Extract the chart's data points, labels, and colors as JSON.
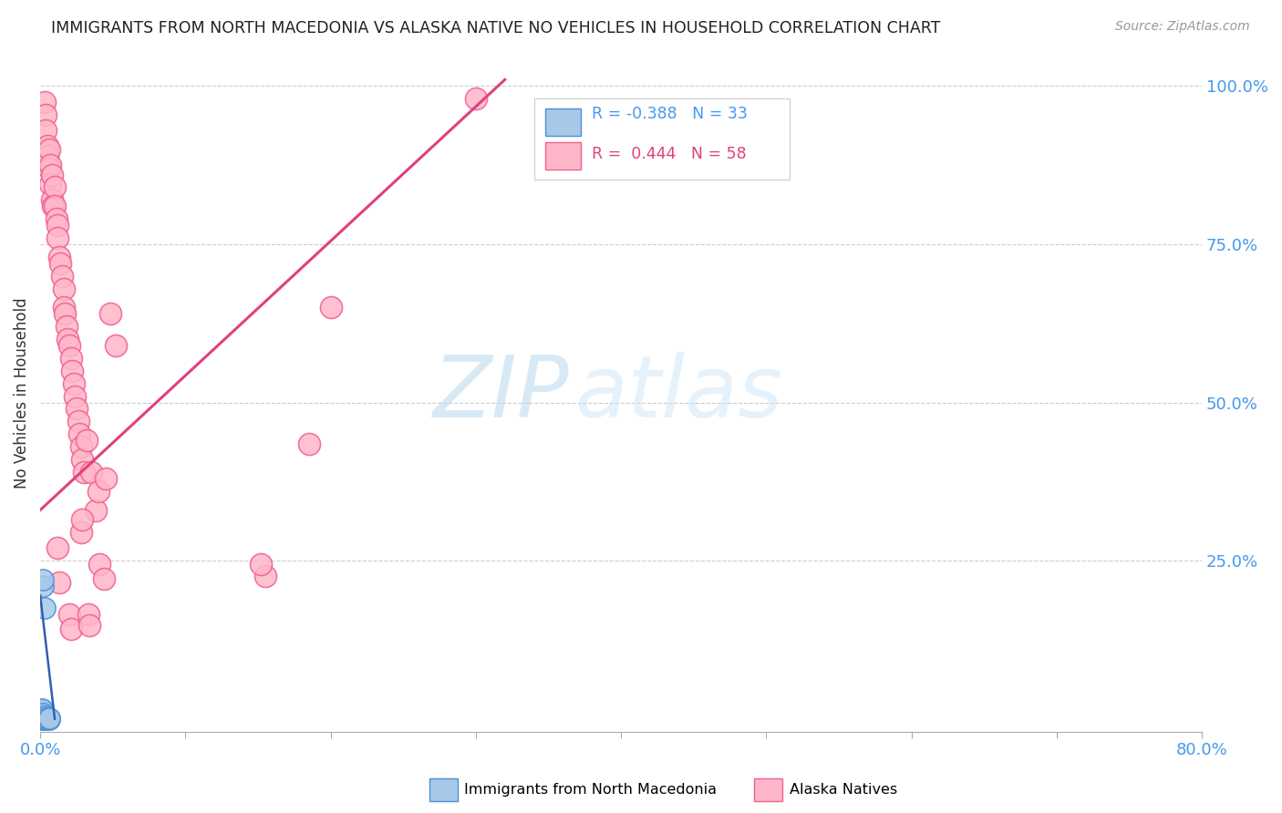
{
  "title": "IMMIGRANTS FROM NORTH MACEDONIA VS ALASKA NATIVE NO VEHICLES IN HOUSEHOLD CORRELATION CHART",
  "source": "Source: ZipAtlas.com",
  "ylabel_label": "No Vehicles in Household",
  "legend_blue_r": "-0.388",
  "legend_blue_n": "33",
  "legend_pink_r": "0.444",
  "legend_pink_n": "58",
  "watermark_zip": "ZIP",
  "watermark_atlas": "atlas",
  "blue_color": "#a8c8e8",
  "pink_color": "#ffb6c8",
  "blue_edge_color": "#4a90d9",
  "pink_edge_color": "#f06090",
  "blue_line_color": "#3060b0",
  "pink_line_color": "#e04080",
  "title_color": "#222222",
  "source_color": "#999999",
  "axis_label_color": "#4499ee",
  "ylabel_color": "#333333",
  "grid_color": "#cccccc",
  "background_color": "#ffffff",
  "xmin": 0.0,
  "xmax": 0.8,
  "ymin": -0.02,
  "ymax": 1.05,
  "x_ticks": [
    0.0,
    0.1,
    0.2,
    0.3,
    0.4,
    0.5,
    0.6,
    0.7,
    0.8
  ],
  "x_tick_labels": [
    "0.0%",
    "",
    "",
    "",
    "",
    "",
    "",
    "",
    "80.0%"
  ],
  "y_ticks": [
    0.0,
    0.25,
    0.5,
    0.75,
    1.0
  ],
  "y_tick_labels": [
    "",
    "25.0%",
    "50.0%",
    "75.0%",
    "100.0%"
  ],
  "blue_scatter": [
    [
      0.001,
      0.0
    ],
    [
      0.001,
      0.001
    ],
    [
      0.001,
      0.002
    ],
    [
      0.001,
      0.003
    ],
    [
      0.001,
      0.004
    ],
    [
      0.001,
      0.005
    ],
    [
      0.001,
      0.006
    ],
    [
      0.001,
      0.007
    ],
    [
      0.001,
      0.008
    ],
    [
      0.001,
      0.009
    ],
    [
      0.001,
      0.01
    ],
    [
      0.001,
      0.011
    ],
    [
      0.001,
      0.012
    ],
    [
      0.001,
      0.013
    ],
    [
      0.001,
      0.014
    ],
    [
      0.001,
      0.015
    ],
    [
      0.002,
      0.0
    ],
    [
      0.002,
      0.002
    ],
    [
      0.002,
      0.004
    ],
    [
      0.002,
      0.006
    ],
    [
      0.002,
      0.008
    ],
    [
      0.003,
      0.0
    ],
    [
      0.003,
      0.001
    ],
    [
      0.003,
      0.002
    ],
    [
      0.003,
      0.004
    ],
    [
      0.004,
      0.0
    ],
    [
      0.004,
      0.001
    ],
    [
      0.005,
      0.0
    ],
    [
      0.006,
      0.0
    ],
    [
      0.006,
      0.001
    ],
    [
      0.002,
      0.21
    ],
    [
      0.002,
      0.22
    ],
    [
      0.003,
      0.175
    ]
  ],
  "pink_scatter": [
    [
      0.003,
      0.975
    ],
    [
      0.004,
      0.955
    ],
    [
      0.004,
      0.93
    ],
    [
      0.005,
      0.905
    ],
    [
      0.005,
      0.89
    ],
    [
      0.006,
      0.9
    ],
    [
      0.006,
      0.87
    ],
    [
      0.007,
      0.875
    ],
    [
      0.007,
      0.845
    ],
    [
      0.008,
      0.86
    ],
    [
      0.008,
      0.82
    ],
    [
      0.009,
      0.81
    ],
    [
      0.01,
      0.84
    ],
    [
      0.01,
      0.81
    ],
    [
      0.011,
      0.79
    ],
    [
      0.012,
      0.78
    ],
    [
      0.012,
      0.76
    ],
    [
      0.013,
      0.73
    ],
    [
      0.014,
      0.72
    ],
    [
      0.015,
      0.7
    ],
    [
      0.016,
      0.68
    ],
    [
      0.016,
      0.65
    ],
    [
      0.017,
      0.64
    ],
    [
      0.018,
      0.62
    ],
    [
      0.019,
      0.6
    ],
    [
      0.02,
      0.59
    ],
    [
      0.021,
      0.57
    ],
    [
      0.022,
      0.55
    ],
    [
      0.023,
      0.53
    ],
    [
      0.024,
      0.51
    ],
    [
      0.025,
      0.49
    ],
    [
      0.026,
      0.47
    ],
    [
      0.027,
      0.45
    ],
    [
      0.028,
      0.43
    ],
    [
      0.029,
      0.41
    ],
    [
      0.03,
      0.39
    ],
    [
      0.032,
      0.44
    ],
    [
      0.035,
      0.39
    ],
    [
      0.038,
      0.33
    ],
    [
      0.04,
      0.36
    ],
    [
      0.045,
      0.38
    ],
    [
      0.048,
      0.64
    ],
    [
      0.052,
      0.59
    ],
    [
      0.3,
      0.98
    ],
    [
      0.2,
      0.65
    ],
    [
      0.185,
      0.435
    ],
    [
      0.155,
      0.225
    ],
    [
      0.152,
      0.245
    ],
    [
      0.012,
      0.27
    ],
    [
      0.013,
      0.215
    ],
    [
      0.02,
      0.165
    ],
    [
      0.021,
      0.142
    ],
    [
      0.028,
      0.295
    ],
    [
      0.029,
      0.315
    ],
    [
      0.033,
      0.165
    ],
    [
      0.034,
      0.148
    ],
    [
      0.041,
      0.245
    ],
    [
      0.044,
      0.222
    ]
  ],
  "pink_trend_x": [
    0.0,
    0.32
  ],
  "pink_trend_y": [
    0.33,
    1.01
  ],
  "blue_trend_x": [
    0.0,
    0.01
  ],
  "blue_trend_y": [
    0.195,
    0.0
  ]
}
